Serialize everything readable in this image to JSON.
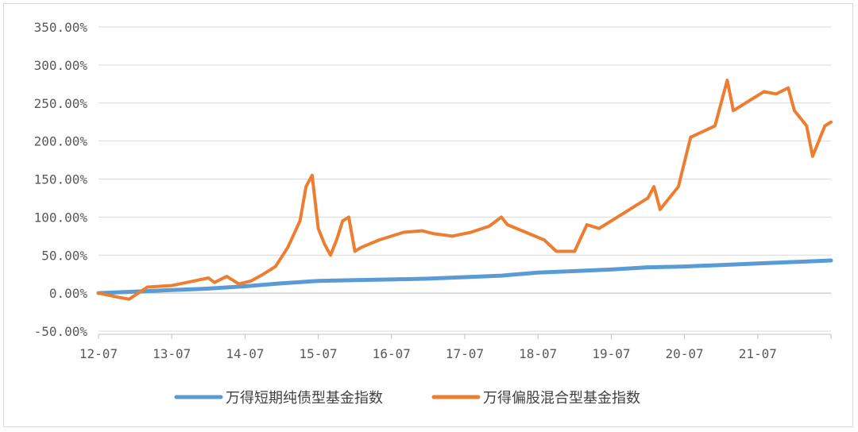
{
  "chart_data": {
    "type": "line",
    "title": "",
    "xlabel": "",
    "ylabel": "",
    "ylim": [
      -50,
      350
    ],
    "xlim": [
      "2012-07",
      "2022-07"
    ],
    "y_ticks": [
      "350.00%",
      "300.00%",
      "250.00%",
      "200.00%",
      "150.00%",
      "100.00%",
      "50.00%",
      "0.00%",
      "-50.00%"
    ],
    "x_ticks": [
      "12-07",
      "13-07",
      "14-07",
      "15-07",
      "16-07",
      "17-07",
      "18-07",
      "19-07",
      "20-07",
      "21-07"
    ],
    "grid": "horizontal",
    "legend_position": "bottom",
    "series": [
      {
        "name": "万得短期纯债型基金指数",
        "color": "#5b9bd5",
        "points": [
          [
            "2012-07",
            0
          ],
          [
            "2013-01",
            2
          ],
          [
            "2013-07",
            4
          ],
          [
            "2014-01",
            6
          ],
          [
            "2014-07",
            9
          ],
          [
            "2015-01",
            13
          ],
          [
            "2015-07",
            16
          ],
          [
            "2016-01",
            17
          ],
          [
            "2016-07",
            18
          ],
          [
            "2017-01",
            19
          ],
          [
            "2017-07",
            21
          ],
          [
            "2018-01",
            23
          ],
          [
            "2018-07",
            27
          ],
          [
            "2019-01",
            29
          ],
          [
            "2019-07",
            31
          ],
          [
            "2020-01",
            34
          ],
          [
            "2020-07",
            35
          ],
          [
            "2021-01",
            37
          ],
          [
            "2021-07",
            39
          ],
          [
            "2022-01",
            41
          ],
          [
            "2022-07",
            43
          ]
        ]
      },
      {
        "name": "万得偏股混合型基金指数",
        "color": "#ed7d31",
        "points": [
          [
            "2012-07",
            0
          ],
          [
            "2012-10",
            -5
          ],
          [
            "2012-12",
            -8
          ],
          [
            "2013-03",
            8
          ],
          [
            "2013-07",
            10
          ],
          [
            "2013-10",
            15
          ],
          [
            "2014-01",
            20
          ],
          [
            "2014-02",
            14
          ],
          [
            "2014-04",
            22
          ],
          [
            "2014-06",
            12
          ],
          [
            "2014-08",
            16
          ],
          [
            "2014-10",
            25
          ],
          [
            "2014-12",
            35
          ],
          [
            "2015-02",
            60
          ],
          [
            "2015-04",
            95
          ],
          [
            "2015-05",
            140
          ],
          [
            "2015-06",
            155
          ],
          [
            "2015-07",
            85
          ],
          [
            "2015-08",
            65
          ],
          [
            "2015-09",
            50
          ],
          [
            "2015-10",
            70
          ],
          [
            "2015-11",
            95
          ],
          [
            "2015-12",
            100
          ],
          [
            "2016-01",
            55
          ],
          [
            "2016-02",
            60
          ],
          [
            "2016-05",
            70
          ],
          [
            "2016-09",
            80
          ],
          [
            "2016-12",
            82
          ],
          [
            "2017-02",
            78
          ],
          [
            "2017-05",
            75
          ],
          [
            "2017-08",
            80
          ],
          [
            "2017-11",
            88
          ],
          [
            "2018-01",
            100
          ],
          [
            "2018-02",
            90
          ],
          [
            "2018-05",
            80
          ],
          [
            "2018-08",
            70
          ],
          [
            "2018-10",
            55
          ],
          [
            "2019-01",
            55
          ],
          [
            "2019-03",
            90
          ],
          [
            "2019-05",
            85
          ],
          [
            "2019-08",
            100
          ],
          [
            "2020-01",
            125
          ],
          [
            "2020-02",
            140
          ],
          [
            "2020-03",
            110
          ],
          [
            "2020-06",
            140
          ],
          [
            "2020-08",
            205
          ],
          [
            "2020-12",
            220
          ],
          [
            "2021-02",
            280
          ],
          [
            "2021-03",
            240
          ],
          [
            "2021-06",
            255
          ],
          [
            "2021-08",
            265
          ],
          [
            "2021-10",
            262
          ],
          [
            "2021-12",
            270
          ],
          [
            "2022-01",
            240
          ],
          [
            "2022-03",
            220
          ],
          [
            "2022-04",
            180
          ],
          [
            "2022-06",
            220
          ],
          [
            "2022-07",
            225
          ]
        ]
      }
    ]
  }
}
